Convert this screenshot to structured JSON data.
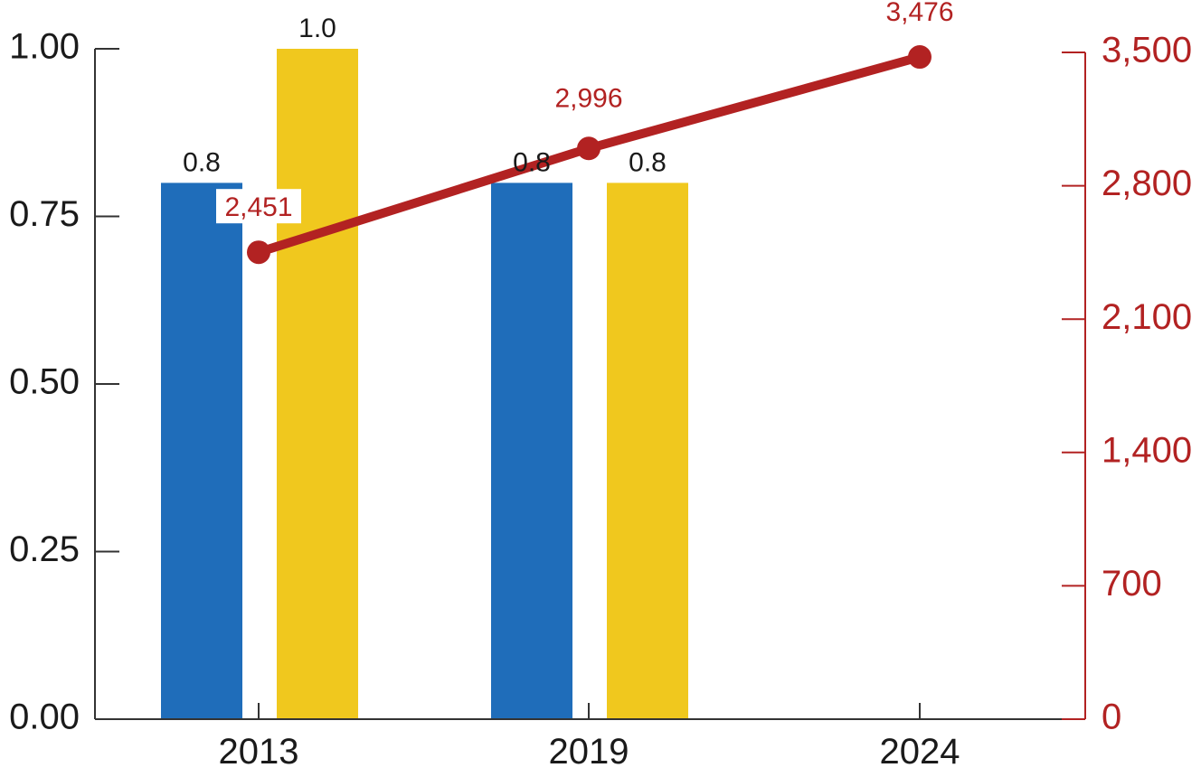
{
  "chart_data": {
    "type": "bar",
    "categories": [
      "2013",
      "2019",
      "2024"
    ],
    "bar_series": [
      {
        "values": [
          0.8,
          0.8,
          null
        ],
        "labels": [
          "0.8",
          "0.8",
          ""
        ],
        "color": "#1f6dba"
      },
      {
        "values": [
          1.0,
          0.8,
          null
        ],
        "labels": [
          "1.0",
          "0.8",
          ""
        ],
        "color": "#f0c81e"
      }
    ],
    "line_series": {
      "values": [
        2451,
        2996,
        3476
      ],
      "labels": [
        "2,451",
        "2,996",
        "3,476"
      ],
      "color": "#b22222"
    },
    "left_axis": {
      "ylim": [
        0,
        1.0
      ],
      "ticks": [
        "0.00",
        "0.25",
        "0.50",
        "0.75",
        "1.00"
      ],
      "tick_values": [
        0,
        0.25,
        0.5,
        0.75,
        1.0
      ]
    },
    "right_axis": {
      "ylim": [
        0,
        3500
      ],
      "ticks": [
        "0",
        "700",
        "1,400",
        "2,100",
        "2,800",
        "3,500"
      ],
      "tick_values": [
        0,
        700,
        1400,
        2100,
        2800,
        3500
      ]
    },
    "grid": false,
    "legend": "none"
  }
}
